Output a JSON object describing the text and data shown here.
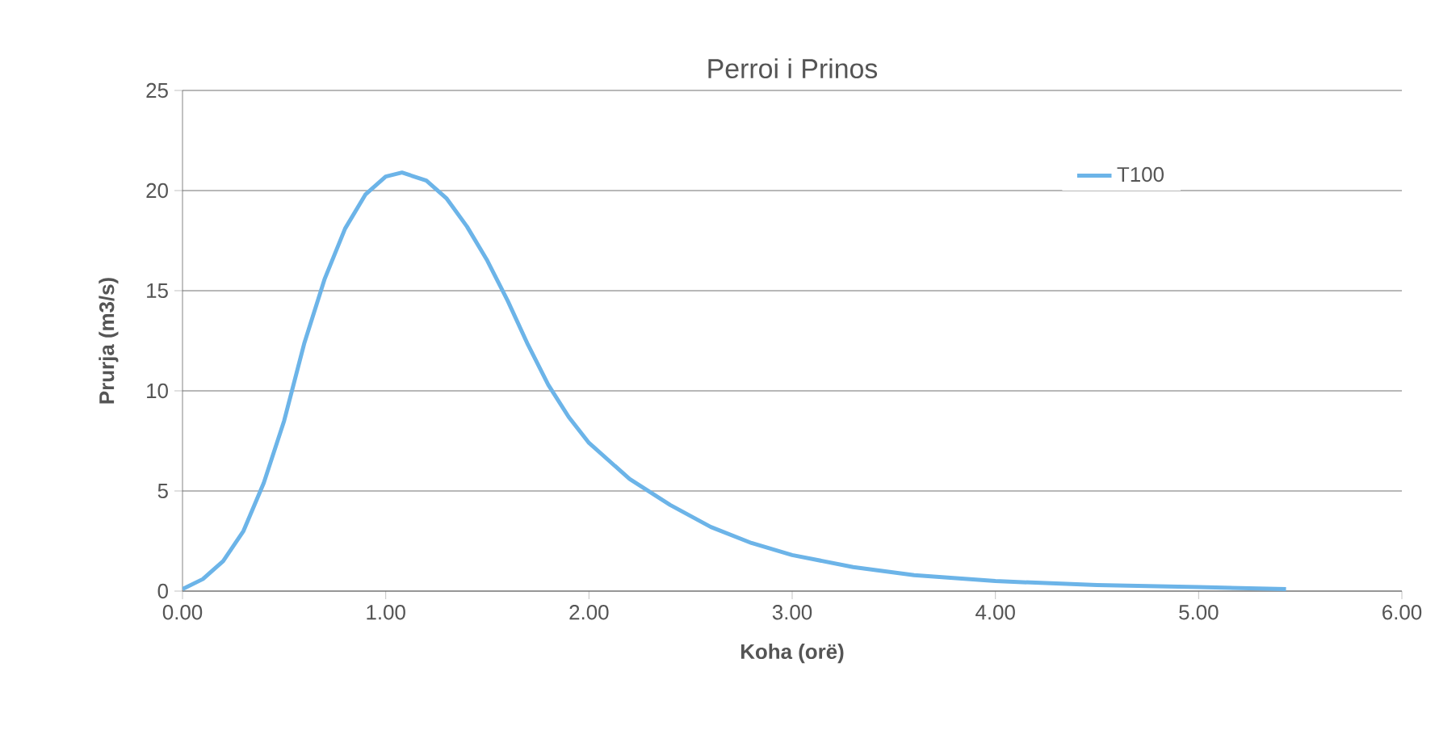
{
  "chart_data": {
    "type": "line",
    "title": "Perroi i Prinos",
    "xlabel": "Koha (orë)",
    "ylabel": "Prurja (m3/s)",
    "xlim": [
      0,
      6
    ],
    "ylim": [
      0,
      25
    ],
    "xticks": [
      {
        "value": 0,
        "label": "0.00"
      },
      {
        "value": 1,
        "label": "1.00"
      },
      {
        "value": 2,
        "label": "2.00"
      },
      {
        "value": 3,
        "label": "3.00"
      },
      {
        "value": 4,
        "label": "4.00"
      },
      {
        "value": 5,
        "label": "5.00"
      },
      {
        "value": 6,
        "label": "6.00"
      }
    ],
    "yticks": [
      0,
      5,
      10,
      15,
      20,
      25
    ],
    "grid": "y",
    "legend": "top right",
    "marker": "none",
    "line_style": "solid",
    "series": [
      {
        "name": "T100",
        "color": "#6cb4e8",
        "x": [
          0,
          0.1,
          0.2,
          0.3,
          0.4,
          0.5,
          0.6,
          0.7,
          0.8,
          0.9,
          1.0,
          1.08,
          1.2,
          1.3,
          1.4,
          1.5,
          1.6,
          1.7,
          1.8,
          1.9,
          2.0,
          2.2,
          2.4,
          2.6,
          2.8,
          3.0,
          3.3,
          3.6,
          4.0,
          4.5,
          5.0,
          5.43
        ],
        "values": [
          0.1,
          0.6,
          1.5,
          3,
          5.4,
          8.5,
          12.4,
          15.6,
          18.1,
          19.8,
          20.7,
          20.9,
          20.5,
          19.6,
          18.2,
          16.5,
          14.5,
          12.3,
          10.3,
          8.7,
          7.4,
          5.6,
          4.3,
          3.2,
          2.4,
          1.8,
          1.2,
          0.8,
          0.5,
          0.3,
          0.2,
          0.1
        ]
      }
    ]
  }
}
